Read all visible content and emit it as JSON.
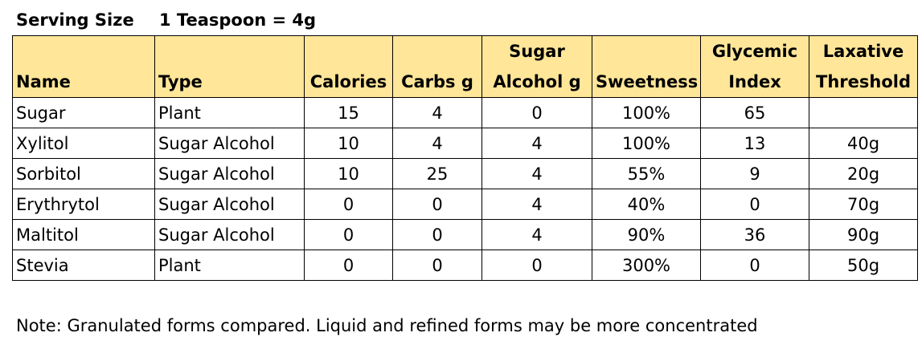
{
  "serving": {
    "label": "Serving Size",
    "value": "1 Teaspoon = 4g"
  },
  "table": {
    "headers": [
      {
        "line1": "",
        "line2": "Name"
      },
      {
        "line1": "",
        "line2": "Type"
      },
      {
        "line1": "",
        "line2": "Calories"
      },
      {
        "line1": "",
        "line2": "Carbs g"
      },
      {
        "line1": "Sugar",
        "line2": "Alcohol g"
      },
      {
        "line1": "",
        "line2": "Sweetness"
      },
      {
        "line1": "Glycemic",
        "line2": "Index"
      },
      {
        "line1": "Laxative",
        "line2": "Threshold"
      }
    ],
    "rows": [
      [
        "Sugar",
        "Plant",
        "15",
        "4",
        "0",
        "100%",
        "65",
        ""
      ],
      [
        "Xylitol",
        "Sugar Alcohol",
        "10",
        "4",
        "4",
        "100%",
        "13",
        "40g"
      ],
      [
        "Sorbitol",
        "Sugar Alcohol",
        "10",
        "25",
        "4",
        "55%",
        "9",
        "20g"
      ],
      [
        "Erythrytol",
        "Sugar Alcohol",
        "0",
        "0",
        "4",
        "40%",
        "0",
        "70g"
      ],
      [
        "Maltitol",
        "Sugar Alcohol",
        "0",
        "0",
        "4",
        "90%",
        "36",
        "90g"
      ],
      [
        "Stevia",
        "Plant",
        "0",
        "0",
        "0",
        "300%",
        "0",
        "50g"
      ]
    ]
  },
  "note": "Note: Granulated forms compared.  Liquid and refined forms may be more concentrated",
  "colors": {
    "header_fill": "#ffe699",
    "border": "#000000"
  }
}
